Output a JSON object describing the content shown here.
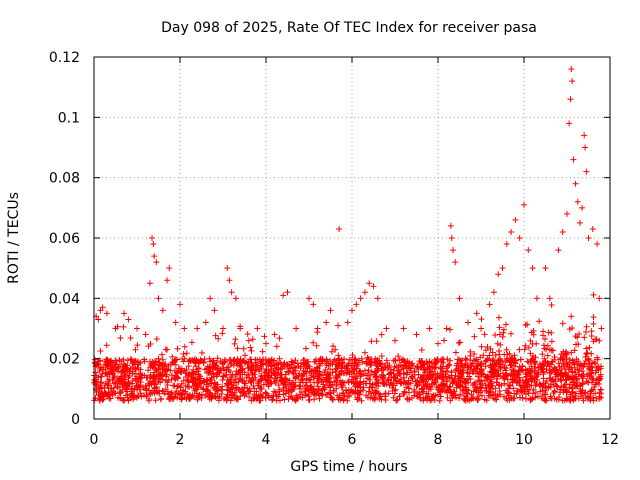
{
  "chart_data": {
    "type": "scatter",
    "title": "Day 098 of 2025, Rate Of TEC Index for receiver pasa",
    "xlabel": "GPS time / hours",
    "ylabel": "ROTI / TECUs",
    "xlim": [
      0,
      12
    ],
    "ylim": [
      0,
      0.12
    ],
    "xticks": [
      0,
      2,
      4,
      6,
      8,
      10,
      12
    ],
    "xtick_labels": [
      "0",
      "2",
      "4",
      "6",
      "8",
      "10",
      "12"
    ],
    "yticks": [
      0,
      0.02,
      0.04,
      0.06,
      0.08,
      0.1,
      0.12
    ],
    "ytick_labels": [
      "0",
      "0.02",
      "0.04",
      "0.06",
      "0.08",
      "0.1",
      "0.12"
    ],
    "grid": true,
    "marker": "plus",
    "marker_color": "#ff0000",
    "series": [
      {
        "name": "ROTI",
        "color": "#ff0000",
        "points": [
          [
            0.05,
            0.034
          ],
          [
            0.1,
            0.033
          ],
          [
            0.15,
            0.036
          ],
          [
            0.2,
            0.037
          ],
          [
            0.3,
            0.035
          ],
          [
            0.5,
            0.03
          ],
          [
            0.7,
            0.035
          ],
          [
            0.8,
            0.033
          ],
          [
            1.0,
            0.03
          ],
          [
            1.2,
            0.028
          ],
          [
            1.3,
            0.045
          ],
          [
            1.35,
            0.06
          ],
          [
            1.38,
            0.058
          ],
          [
            1.4,
            0.054
          ],
          [
            1.45,
            0.052
          ],
          [
            1.5,
            0.04
          ],
          [
            1.6,
            0.036
          ],
          [
            1.7,
            0.046
          ],
          [
            1.75,
            0.05
          ],
          [
            1.9,
            0.032
          ],
          [
            2.0,
            0.038
          ],
          [
            2.1,
            0.03
          ],
          [
            2.4,
            0.03
          ],
          [
            2.6,
            0.032
          ],
          [
            2.7,
            0.04
          ],
          [
            2.8,
            0.036
          ],
          [
            3.0,
            0.03
          ],
          [
            3.1,
            0.05
          ],
          [
            3.15,
            0.046
          ],
          [
            3.2,
            0.042
          ],
          [
            3.3,
            0.04
          ],
          [
            3.4,
            0.03
          ],
          [
            3.6,
            0.026
          ],
          [
            3.8,
            0.03
          ],
          [
            4.0,
            0.025
          ],
          [
            4.2,
            0.028
          ],
          [
            4.4,
            0.041
          ],
          [
            4.5,
            0.042
          ],
          [
            4.7,
            0.03
          ],
          [
            5.0,
            0.04
          ],
          [
            5.1,
            0.038
          ],
          [
            5.2,
            0.03
          ],
          [
            5.4,
            0.032
          ],
          [
            5.5,
            0.036
          ],
          [
            5.7,
            0.063
          ],
          [
            5.9,
            0.032
          ],
          [
            6.0,
            0.036
          ],
          [
            6.1,
            0.038
          ],
          [
            6.2,
            0.04
          ],
          [
            6.3,
            0.042
          ],
          [
            6.4,
            0.045
          ],
          [
            6.5,
            0.044
          ],
          [
            6.6,
            0.04
          ],
          [
            6.8,
            0.03
          ],
          [
            7.0,
            0.026
          ],
          [
            7.2,
            0.03
          ],
          [
            7.5,
            0.028
          ],
          [
            7.8,
            0.03
          ],
          [
            8.0,
            0.025
          ],
          [
            8.2,
            0.03
          ],
          [
            8.3,
            0.064
          ],
          [
            8.32,
            0.06
          ],
          [
            8.35,
            0.056
          ],
          [
            8.4,
            0.052
          ],
          [
            8.5,
            0.04
          ],
          [
            8.7,
            0.032
          ],
          [
            8.9,
            0.035
          ],
          [
            9.0,
            0.03
          ],
          [
            9.2,
            0.038
          ],
          [
            9.3,
            0.042
          ],
          [
            9.4,
            0.048
          ],
          [
            9.5,
            0.05
          ],
          [
            9.6,
            0.058
          ],
          [
            9.7,
            0.062
          ],
          [
            9.8,
            0.066
          ],
          [
            9.9,
            0.06
          ],
          [
            10.0,
            0.071
          ],
          [
            10.1,
            0.056
          ],
          [
            10.2,
            0.05
          ],
          [
            10.3,
            0.04
          ],
          [
            10.5,
            0.05
          ],
          [
            10.6,
            0.04
          ],
          [
            10.8,
            0.056
          ],
          [
            10.9,
            0.062
          ],
          [
            11.0,
            0.068
          ],
          [
            11.05,
            0.098
          ],
          [
            11.08,
            0.106
          ],
          [
            11.1,
            0.116
          ],
          [
            11.12,
            0.112
          ],
          [
            11.15,
            0.086
          ],
          [
            11.2,
            0.078
          ],
          [
            11.25,
            0.072
          ],
          [
            11.3,
            0.065
          ],
          [
            11.35,
            0.07
          ],
          [
            11.4,
            0.094
          ],
          [
            11.42,
            0.09
          ],
          [
            11.45,
            0.082
          ],
          [
            11.5,
            0.06
          ],
          [
            11.6,
            0.063
          ],
          [
            11.7,
            0.058
          ],
          [
            11.75,
            0.04
          ],
          [
            11.8,
            0.03
          ],
          [
            0.0,
            0.012
          ],
          [
            0.3,
            0.018
          ],
          [
            0.6,
            0.009
          ],
          [
            0.9,
            0.015
          ],
          [
            1.2,
            0.011
          ],
          [
            1.5,
            0.02
          ],
          [
            1.8,
            0.013
          ],
          [
            2.1,
            0.016
          ],
          [
            2.4,
            0.01
          ],
          [
            2.7,
            0.019
          ],
          [
            3.0,
            0.014
          ],
          [
            3.3,
            0.012
          ],
          [
            3.6,
            0.017
          ],
          [
            3.9,
            0.01
          ],
          [
            4.2,
            0.015
          ],
          [
            4.5,
            0.018
          ],
          [
            4.8,
            0.011
          ],
          [
            5.1,
            0.016
          ],
          [
            5.4,
            0.013
          ],
          [
            5.7,
            0.02
          ],
          [
            6.0,
            0.014
          ],
          [
            6.3,
            0.022
          ],
          [
            6.6,
            0.016
          ],
          [
            6.9,
            0.012
          ],
          [
            7.2,
            0.015
          ],
          [
            7.5,
            0.011
          ],
          [
            7.8,
            0.017
          ],
          [
            8.1,
            0.013
          ],
          [
            8.4,
            0.016
          ],
          [
            8.7,
            0.012
          ],
          [
            9.0,
            0.018
          ],
          [
            9.3,
            0.014
          ],
          [
            9.6,
            0.02
          ],
          [
            9.9,
            0.016
          ],
          [
            10.2,
            0.013
          ],
          [
            10.5,
            0.019
          ],
          [
            10.8,
            0.015
          ],
          [
            11.1,
            0.022
          ],
          [
            11.4,
            0.018
          ],
          [
            11.7,
            0.012
          ]
        ],
        "background_band": {
          "note": "dense cloud of points from 0 to 11.8 h",
          "x_range": [
            0,
            11.8
          ],
          "y_min": 0.003,
          "y_typical": [
            0.006,
            0.02
          ]
        }
      }
    ]
  }
}
